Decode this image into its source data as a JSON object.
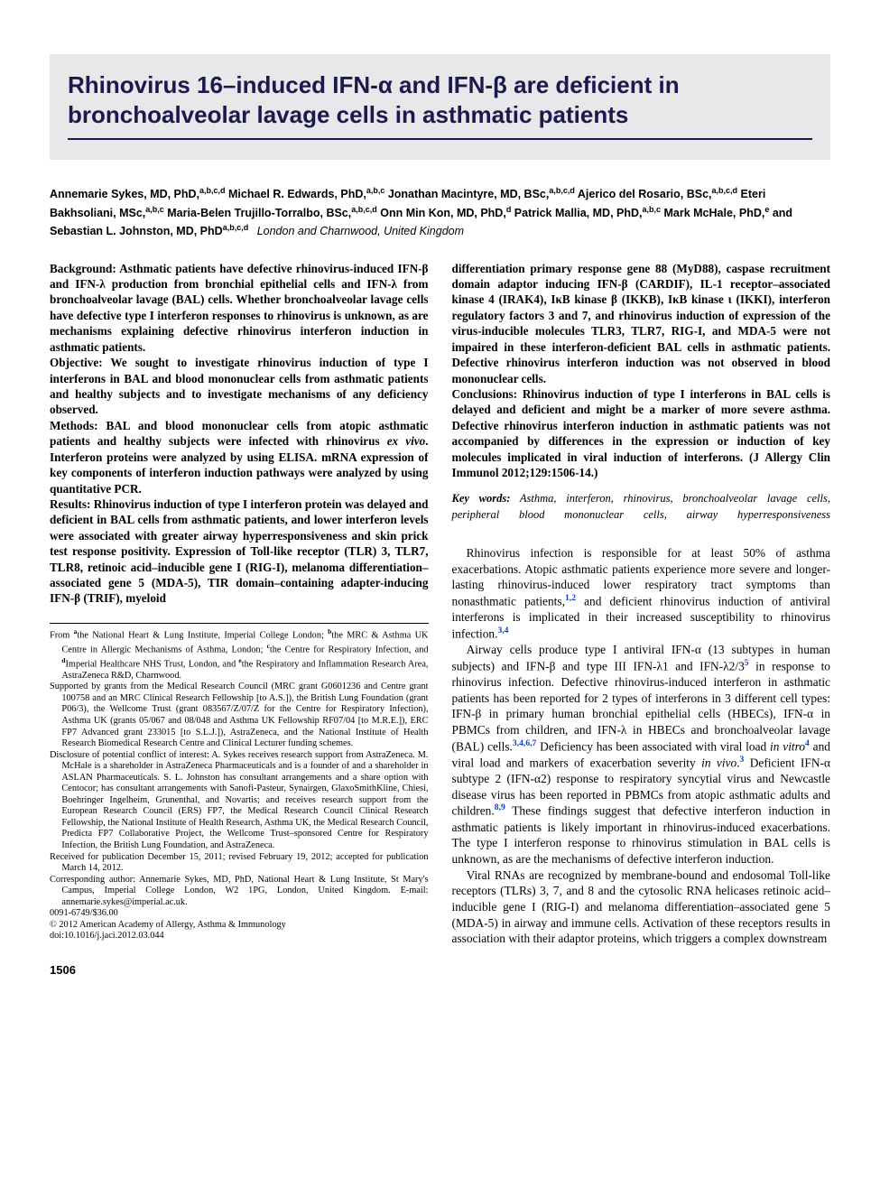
{
  "title": "Rhinovirus 16–induced IFN-α and IFN-β are deficient in bronchoalveolar lavage cells in asthmatic patients",
  "authors_html": "Annemarie Sykes, MD, PhD,<sup>a,b,c,d</sup> Michael R. Edwards, PhD,<sup>a,b,c</sup> Jonathan Macintyre, MD, BSc,<sup>a,b,c,d</sup> Ajerico del Rosario, BSc,<sup>a,b,c,d</sup> Eteri Bakhsoliani, MSc,<sup>a,b,c</sup> Maria-Belen Trujillo-Torralbo, BSc,<sup>a,b,c,d</sup> Onn Min Kon, MD, PhD,<sup>d</sup> Patrick Mallia, MD, PhD,<sup>a,b,c</sup> Mark McHale, PhD,<sup>e</sup> and Sebastian L. Johnston, MD, PhD<sup>a,b,c,d</sup>",
  "location": "London and Charnwood, United Kingdom",
  "abstract": {
    "left": "Background: Asthmatic patients have defective rhinovirus-induced IFN-β and IFN-λ production from bronchial epithelial cells and IFN-λ from bronchoalveolar lavage (BAL) cells. Whether bronchoalveolar lavage cells have defective type I interferon responses to rhinovirus is unknown, as are mechanisms explaining defective rhinovirus interferon induction in asthmatic patients.\nObjective: We sought to investigate rhinovirus induction of type I interferons in BAL and blood mononuclear cells from asthmatic patients and healthy subjects and to investigate mechanisms of any deficiency observed.\nMethods: BAL and blood mononuclear cells from atopic asthmatic patients and healthy subjects were infected with rhinovirus ex vivo. Interferon proteins were analyzed by using ELISA. mRNA expression of key components of interferon induction pathways were analyzed by using quantitative PCR.\nResults: Rhinovirus induction of type I interferon protein was delayed and deficient in BAL cells from asthmatic patients, and lower interferon levels were associated with greater airway hyperresponsiveness and skin prick test response positivity. Expression of Toll-like receptor (TLR) 3, TLR7, TLR8, retinoic acid–inducible gene I (RIG-I), melanoma differentiation–associated gene 5 (MDA-5), TIR domain–containing adapter-inducing IFN-β (TRIF), myeloid",
    "right": "differentiation primary response gene 88 (MyD88), caspase recruitment domain adaptor inducing IFN-β (CARDIF), IL-1 receptor–associated kinase 4 (IRAK4), IκB kinase β (IKKB), IκB kinase ι (IKKI), interferon regulatory factors 3 and 7, and rhinovirus induction of expression of the virus-inducible molecules TLR3, TLR7, RIG-I, and MDA-5 were not impaired in these interferon-deficient BAL cells in asthmatic patients. Defective rhinovirus interferon induction was not observed in blood mononuclear cells.\nConclusions: Rhinovirus induction of type I interferons in BAL cells is delayed and deficient and might be a marker of more severe asthma. Defective rhinovirus interferon induction in asthmatic patients was not accompanied by differences in the expression or induction of key molecules implicated in viral induction of interferons. (J Allergy Clin Immunol 2012;129:1506-14.)"
  },
  "keywords_label": "Key words:",
  "keywords": "Asthma, interferon, rhinovirus, bronchoalveolar lavage cells, peripheral blood mononuclear cells, airway hyperresponsiveness",
  "body": {
    "p1_html": "Rhinovirus infection is responsible for at least 50% of asthma exacerbations. Atopic asthmatic patients experience more severe and longer-lasting rhinovirus-induced lower respiratory tract symptoms than nonasthmatic patients,<sup class=\"ref-link\">1,2</sup> and deficient rhinovirus induction of antiviral interferons is implicated in their increased susceptibility to rhinovirus infection.<sup class=\"ref-link\">3,4</sup>",
    "p2_html": "Airway cells produce type I antiviral IFN-α (13 subtypes in human subjects) and IFN-β and type III IFN-λ1 and IFN-λ2/3<sup class=\"ref-link\">5</sup> in response to rhinovirus infection. Defective rhinovirus-induced interferon in asthmatic patients has been reported for 2 types of interferons in 3 different cell types: IFN-β in primary human bronchial epithelial cells (HBECs), IFN-α in PBMCs from children, and IFN-λ in HBECs and bronchoalveolar lavage (BAL) cells.<sup class=\"ref-link\">3,4,6,7</sup> Deficiency has been associated with viral load <i>in vitro</i><sup class=\"ref-link\">4</sup> and viral load and markers of exacerbation severity <i>in vivo</i>.<sup class=\"ref-link\">3</sup> Deficient IFN-α subtype 2 (IFN-α2) response to respiratory syncytial virus and Newcastle disease virus has been reported in PBMCs from atopic asthmatic adults and children.<sup class=\"ref-link\">8,9</sup> These findings suggest that defective interferon induction in asthmatic patients is likely important in rhinovirus-induced exacerbations. The type I interferon response to rhinovirus stimulation in BAL cells is unknown, as are the mechanisms of defective interferon induction.",
    "p3_html": "Viral RNAs are recognized by membrane-bound and endosomal Toll-like receptors (TLRs) 3, 7, and 8 and the cytosolic RNA helicases retinoic acid–inducible gene I (RIG-I) and melanoma differentiation–associated gene 5 (MDA-5) in airway and immune cells. Activation of these receptors results in association with their adaptor proteins, which triggers a complex downstream"
  },
  "footnotes": {
    "from_html": "From <sup>a</sup>the National Heart & Lung Institute, Imperial College London; <sup>b</sup>the MRC & Asthma UK Centre in Allergic Mechanisms of Asthma, London; <sup>c</sup>the Centre for Respiratory Infection, and <sup>d</sup>Imperial Healthcare NHS Trust, London, and <sup>e</sup>the Respiratory and Inflammation Research Area, AstraZeneca R&D, Charnwood.",
    "supported": "Supported by grants from the Medical Research Council (MRC grant G0601236 and Centre grant 100758 and an MRC Clinical Research Fellowship [to A.S.]), the British Lung Foundation (grant P06/3), the Wellcome Trust (grant 083567/Z/07/Z for the Centre for Respiratory Infection), Asthma UK (grants 05/067 and 08/048 and Asthma UK Fellowship RF07/04 [to M.R.E.]), ERC FP7 Advanced grant 233015 [to S.L.J.]), AstraZeneca, and the National Institute of Health Research Biomedical Research Centre and Clinical Lecturer funding schemes.",
    "disclosure": "Disclosure of potential conflict of interest: A. Sykes receives research support from AstraZeneca. M. McHale is a shareholder in AstraZeneca Pharmaceuticals and is a founder of and a shareholder in ASLAN Pharmaceuticals. S. L. Johnston has consultant arrangements and a share option with Centocor; has consultant arrangements with Sanofi-Pasteur, Synairgen, GlaxoSmithKline, Chiesi, Boehringer Ingelheim, Grunenthal, and Novartis; and receives research support from the European Research Council (ERS) FP7, the Medical Research Council Clinical Research Fellowship, the National Institute of Health Research, Asthma UK, the Medical Research Council, Predicta FP7 Collaborative Project, the Wellcome Trust–sponsored Centre for Respiratory Infection, the British Lung Foundation, and AstraZeneca.",
    "received": "Received for publication December 15, 2011; revised February 19, 2012; accepted for publication March 14, 2012.",
    "corresponding": "Corresponding author: Annemarie Sykes, MD, PhD, National Heart & Lung Institute, St Mary's Campus, Imperial College London, W2 1PG, London, United Kingdom. E-mail: annemarie.sykes@imperial.ac.uk.",
    "issn": "0091-6749/$36.00",
    "copyright": "© 2012 American Academy of Allergy, Asthma & Immunology",
    "doi": "doi:10.1016/j.jaci.2012.03.044"
  },
  "pagenum": "1506"
}
